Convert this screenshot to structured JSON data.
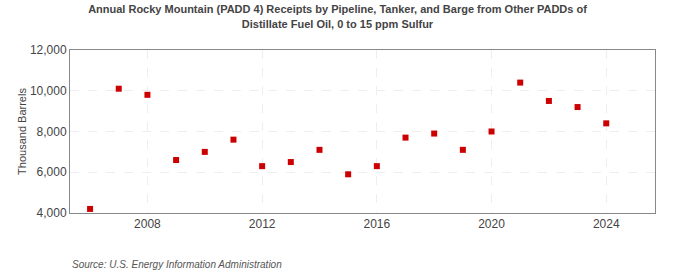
{
  "chart_data": {
    "type": "scatter",
    "title": "Annual Rocky Mountain (PADD 4) Receipts by Pipeline, Tanker, and Barge from Other PADDs of\nDistillate Fuel Oil, 0 to 15 ppm Sulfur",
    "y_label": "Thousand Barrels",
    "annotations": [
      "Source: U.S. Energy Information Administration"
    ],
    "x": [
      2006,
      2007,
      2008,
      2009,
      2010,
      2011,
      2012,
      2013,
      2014,
      2015,
      2016,
      2017,
      2018,
      2019,
      2020,
      2021,
      2022,
      2023,
      2024
    ],
    "values": [
      4200,
      10100,
      9800,
      6600,
      7000,
      7600,
      6300,
      6500,
      7100,
      5900,
      6300,
      7700,
      7900,
      7100,
      8000,
      10400,
      9500,
      9200,
      8400
    ],
    "color": "#cc0000",
    "marker": "square",
    "xlim": [
      2005.3,
      2025.7
    ],
    "xticks": [
      2008,
      2012,
      2016,
      2020,
      2024
    ],
    "ylim": [
      4000,
      12000
    ],
    "yticks": [
      {
        "value": 4000,
        "label": "4,000"
      },
      {
        "value": 6000,
        "label": "6,000"
      },
      {
        "value": 8000,
        "label": "8,000"
      },
      {
        "value": 10000,
        "label": "10,000"
      },
      {
        "value": 12000,
        "label": "12,000"
      }
    ],
    "grid": true
  }
}
